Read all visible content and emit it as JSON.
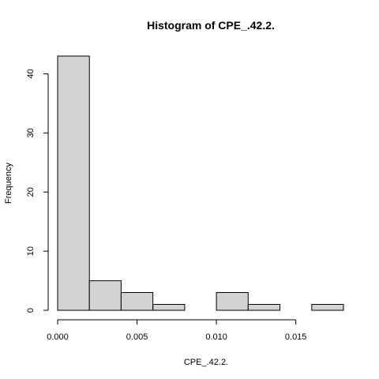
{
  "chart_data": {
    "type": "bar",
    "title": "Histogram of CPE_.42.2.",
    "xlabel": "CPE_.42.2.",
    "ylabel": "Frequency",
    "bins": [
      {
        "start": 0.0,
        "end": 0.002,
        "count": 43
      },
      {
        "start": 0.002,
        "end": 0.004,
        "count": 5
      },
      {
        "start": 0.004,
        "end": 0.006,
        "count": 3
      },
      {
        "start": 0.006,
        "end": 0.008,
        "count": 1
      },
      {
        "start": 0.008,
        "end": 0.01,
        "count": 0
      },
      {
        "start": 0.01,
        "end": 0.012,
        "count": 3
      },
      {
        "start": 0.012,
        "end": 0.014,
        "count": 1
      },
      {
        "start": 0.014,
        "end": 0.016,
        "count": 0
      },
      {
        "start": 0.016,
        "end": 0.018,
        "count": 1
      }
    ],
    "xticks": [
      0.0,
      0.005,
      0.01,
      0.015
    ],
    "xtick_labels": [
      "0.000",
      "0.005",
      "0.010",
      "0.015"
    ],
    "yticks": [
      0,
      10,
      20,
      30,
      40
    ],
    "ytick_labels": [
      "0",
      "10",
      "20",
      "30",
      "40"
    ],
    "xlim": [
      0,
      0.018
    ],
    "ylim": [
      0,
      43
    ],
    "grid": false,
    "colors": {
      "bar_fill": "#d3d3d3",
      "bar_stroke": "#000000"
    }
  }
}
